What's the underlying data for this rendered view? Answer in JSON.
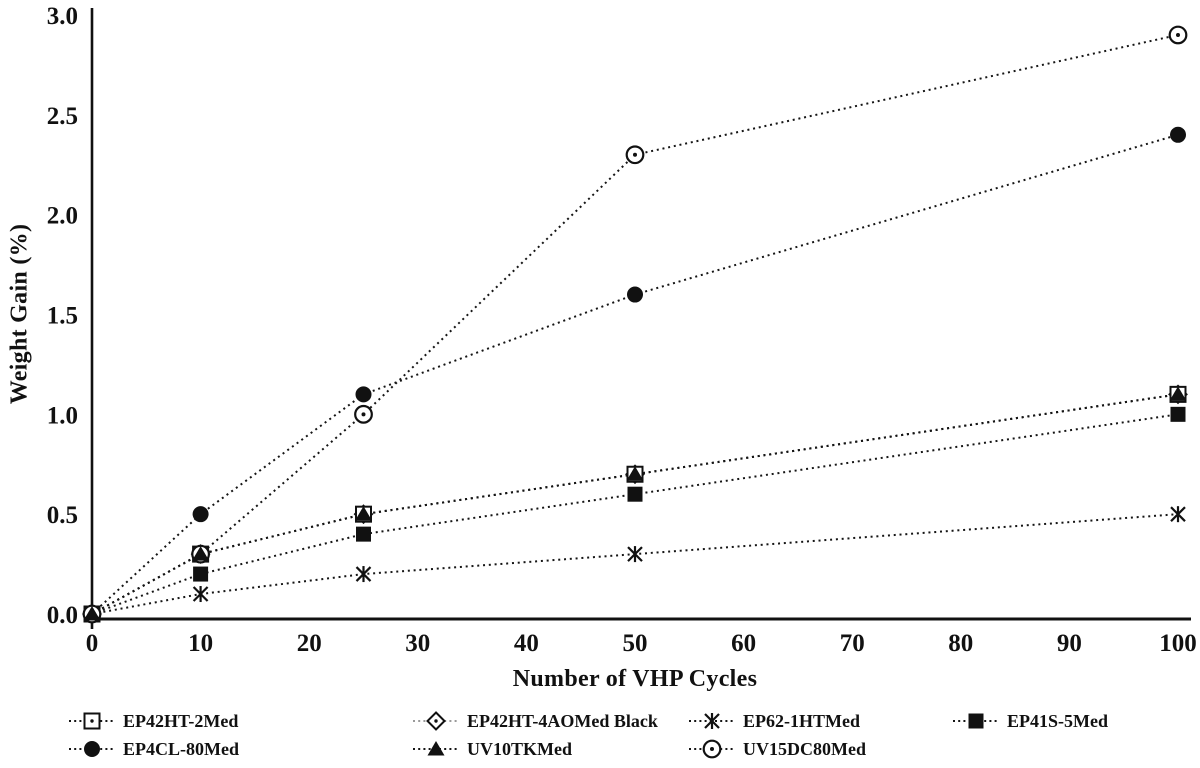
{
  "chart_data": {
    "type": "line",
    "title": "",
    "xlabel": "Number of VHP Cycles",
    "ylabel": "Weight Gain (%)",
    "xlim": [
      0,
      100
    ],
    "ylim": [
      0,
      3.0
    ],
    "x_ticks": [
      "0",
      "10",
      "20",
      "30",
      "40",
      "50",
      "60",
      "70",
      "80",
      "90",
      "100"
    ],
    "y_ticks": [
      "0.0",
      "0.5",
      "1.0",
      "1.5",
      "2.0",
      "2.5",
      "3.0"
    ],
    "grid": false,
    "legend_position": "bottom",
    "line_style": "dotted",
    "axis_color": "#111111",
    "x": [
      0,
      10,
      25,
      50,
      100
    ],
    "series": [
      {
        "name": "EP42HT-2Med",
        "marker": "square-open-dot",
        "line_color": "#151515",
        "values": [
          0,
          0.3,
          0.5,
          0.7,
          1.1
        ]
      },
      {
        "name": "EP42HT-4AOMed Black",
        "marker": "diamond-open-dot",
        "line_color": "#9a9a9a",
        "values": [
          0,
          0.3,
          0.5,
          0.7,
          1.1
        ]
      },
      {
        "name": "EP62-1HTMed",
        "marker": "asterisk",
        "line_color": "#151515",
        "values": [
          0,
          0.1,
          0.2,
          0.3,
          0.5
        ]
      },
      {
        "name": "EP41S-5Med",
        "marker": "square-filled",
        "line_color": "#151515",
        "values": [
          0,
          0.2,
          0.4,
          0.6,
          1.0
        ]
      },
      {
        "name": "EP4CL-80Med",
        "marker": "circle-filled",
        "line_color": "#151515",
        "values": [
          0,
          0.5,
          1.1,
          1.6,
          2.4
        ]
      },
      {
        "name": "UV10TKMed",
        "marker": "triangle-filled",
        "line_color": "#151515",
        "values": [
          0,
          0.3,
          0.5,
          0.7,
          1.1
        ]
      },
      {
        "name": "UV15DC80Med",
        "marker": "circle-open-dot",
        "line_color": "#151515",
        "values": [
          0,
          0.3,
          1.0,
          2.3,
          2.9
        ]
      }
    ]
  }
}
